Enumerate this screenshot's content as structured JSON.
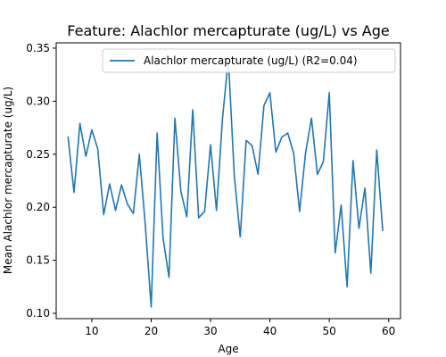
{
  "chart_data": {
    "type": "line",
    "title": "Feature: Alachlor mercapturate (ug/L) vs Age",
    "xlabel": "Age",
    "ylabel": "Mean Alachlor mercapturate (ug/L)",
    "xlim": [
      4,
      62
    ],
    "ylim": [
      0.095,
      0.355
    ],
    "xticks": [
      10,
      20,
      30,
      40,
      50,
      60
    ],
    "yticks": [
      0.1,
      0.15,
      0.2,
      0.25,
      0.3,
      0.35
    ],
    "grid": false,
    "legend_position": "top-right",
    "series": [
      {
        "name": "Alachlor mercapturate (ug/L) (R2=0.04)",
        "color": "#1f77b4",
        "x": [
          6,
          7,
          8,
          9,
          10,
          11,
          12,
          13,
          14,
          15,
          16,
          17,
          18,
          19,
          20,
          21,
          22,
          23,
          24,
          25,
          26,
          27,
          28,
          29,
          30,
          31,
          32,
          33,
          34,
          35,
          36,
          37,
          38,
          39,
          40,
          41,
          42,
          43,
          44,
          45,
          46,
          47,
          48,
          49,
          50,
          51,
          52,
          53,
          54,
          55,
          56,
          57,
          58,
          59
        ],
        "y": [
          0.266,
          0.214,
          0.279,
          0.248,
          0.273,
          0.255,
          0.193,
          0.222,
          0.197,
          0.221,
          0.203,
          0.194,
          0.25,
          0.184,
          0.106,
          0.27,
          0.171,
          0.134,
          0.284,
          0.215,
          0.191,
          0.292,
          0.19,
          0.196,
          0.259,
          0.197,
          0.283,
          0.34,
          0.23,
          0.172,
          0.263,
          0.258,
          0.231,
          0.296,
          0.308,
          0.252,
          0.266,
          0.27,
          0.251,
          0.196,
          0.251,
          0.284,
          0.231,
          0.243,
          0.308,
          0.157,
          0.202,
          0.125,
          0.244,
          0.18,
          0.218,
          0.138,
          0.254,
          0.178
        ]
      }
    ]
  }
}
